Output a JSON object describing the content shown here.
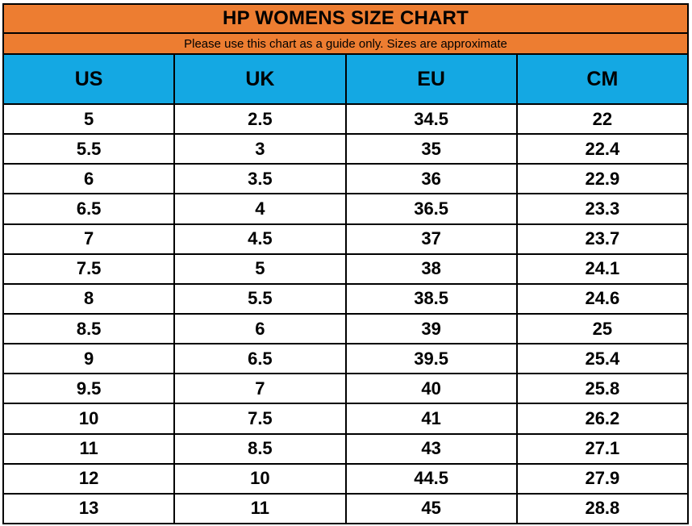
{
  "title": "HP WOMENS SIZE CHART",
  "subtitle": "Please use this chart as a guide only. Sizes are approximate",
  "colors": {
    "header_orange": "#ED7D31",
    "header_blue": "#14A8E3",
    "border_black": "#000000",
    "text_black": "#000000",
    "row_white": "#FFFFFF"
  },
  "chart_data": {
    "type": "table",
    "title": "HP WOMENS SIZE CHART",
    "subtitle": "Please use this chart as a guide only. Sizes are approximate",
    "columns": [
      "US",
      "UK",
      "EU",
      "CM"
    ],
    "rows": [
      [
        "5",
        "2.5",
        "34.5",
        "22"
      ],
      [
        "5.5",
        "3",
        "35",
        "22.4"
      ],
      [
        "6",
        "3.5",
        "36",
        "22.9"
      ],
      [
        "6.5",
        "4",
        "36.5",
        "23.3"
      ],
      [
        "7",
        "4.5",
        "37",
        "23.7"
      ],
      [
        "7.5",
        "5",
        "38",
        "24.1"
      ],
      [
        "8",
        "5.5",
        "38.5",
        "24.6"
      ],
      [
        "8.5",
        "6",
        "39",
        "25"
      ],
      [
        "9",
        "6.5",
        "39.5",
        "25.4"
      ],
      [
        "9.5",
        "7",
        "40",
        "25.8"
      ],
      [
        "10",
        "7.5",
        "41",
        "26.2"
      ],
      [
        "11",
        "8.5",
        "43",
        "27.1"
      ],
      [
        "12",
        "10",
        "44.5",
        "27.9"
      ],
      [
        "13",
        "11",
        "45",
        "28.8"
      ]
    ],
    "layout": {
      "grid": true,
      "header_fill": "cyan-blue",
      "title_fill": "orange",
      "column_count": 4,
      "row_count": 14
    }
  }
}
